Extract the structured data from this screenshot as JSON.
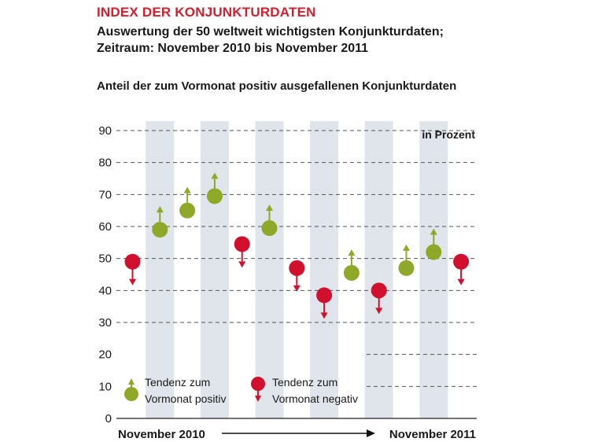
{
  "header": {
    "title": "INDEX DER KONJUNKTURDATEN",
    "subtitle_line1": "Auswertung der 50 weltweit wichtigsten Konjunkturdaten;",
    "subtitle_line2": "Zeitraum: November 2010 bis November 2011",
    "chart_caption": "Anteil der zum Vormonat positiv ausgefallenen Konjunkturdaten"
  },
  "colors": {
    "positive": "#8fa82a",
    "negative": "#d0102c",
    "band": "#dfe5ea",
    "grid": "#555555"
  },
  "chart_data": {
    "type": "scatter",
    "title": "Anteil der zum Vormonat positiv ausgefallenen Konjunkturdaten",
    "unit_label": "in Prozent",
    "y_ticks": [
      0,
      10,
      20,
      30,
      40,
      50,
      60,
      70,
      80,
      90
    ],
    "ylim": [
      0,
      90
    ],
    "grid": true,
    "period_start": "November 2010",
    "period_end": "November 2011",
    "points": [
      {
        "value": 49,
        "tendency": "negative"
      },
      {
        "value": 59,
        "tendency": "positive"
      },
      {
        "value": 65,
        "tendency": "positive"
      },
      {
        "value": 69.5,
        "tendency": "positive"
      },
      {
        "value": 54.5,
        "tendency": "negative"
      },
      {
        "value": 59.5,
        "tendency": "positive"
      },
      {
        "value": 47,
        "tendency": "negative"
      },
      {
        "value": 38.5,
        "tendency": "negative"
      },
      {
        "value": 45.5,
        "tendency": "positive"
      },
      {
        "value": 40,
        "tendency": "negative"
      },
      {
        "value": 47,
        "tendency": "positive"
      },
      {
        "value": 52,
        "tendency": "positive"
      },
      {
        "value": 49,
        "tendency": "negative"
      }
    ],
    "legend": {
      "positive_line1": "Tendenz zum",
      "positive_line2": "Vormonat positiv",
      "negative_line1": "Tendenz zum",
      "negative_line2": "Vormonat negativ"
    }
  }
}
